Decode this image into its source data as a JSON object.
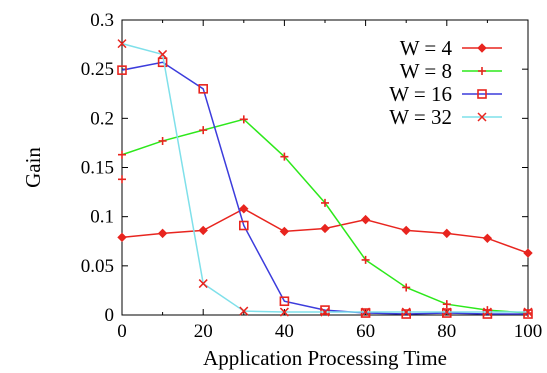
{
  "chart_data": {
    "type": "line",
    "title": "",
    "xlabel": "Application Processing Time",
    "ylabel": "Gain",
    "xlim": [
      0,
      100
    ],
    "ylim": [
      0,
      0.3
    ],
    "xticks": [
      "0",
      "20",
      "40",
      "60",
      "80",
      "100"
    ],
    "yticks": [
      "0",
      "0.05",
      "0.1",
      "0.15",
      "0.2",
      "0.25",
      "0.3"
    ],
    "xtick_values": [
      0,
      20,
      40,
      60,
      80,
      100
    ],
    "ytick_values": [
      0,
      0.05,
      0.1,
      0.15,
      0.2,
      0.25,
      0.3
    ],
    "grid": false,
    "legend_position": "top-right",
    "x": [
      0,
      10,
      20,
      30,
      40,
      50,
      60,
      70,
      80,
      90,
      100
    ],
    "series": [
      {
        "name": "W = 4",
        "color": "#e8251f",
        "marker": "diamond",
        "values": [
          0.079,
          0.083,
          0.086,
          0.108,
          0.085,
          0.088,
          0.097,
          0.086,
          0.083,
          0.078,
          0.063
        ]
      },
      {
        "name": "W = 8",
        "color": "#2de81b",
        "marker": "plus",
        "markerColor": "#e8251f",
        "values": [
          0.163,
          0.177,
          0.188,
          0.199,
          0.161,
          0.114,
          0.056,
          0.028,
          0.011,
          0.005,
          0.002
        ]
      },
      {
        "name": "W = 16",
        "color": "#3c3cdc",
        "marker": "square",
        "markerColor": "#e8251f",
        "values": [
          0.249,
          0.257,
          0.23,
          0.091,
          0.014,
          0.005,
          0.002,
          0.001,
          0.002,
          0.001,
          0.001
        ]
      },
      {
        "name": "W = 32",
        "color": "#7fe0ea",
        "marker": "x",
        "markerColor": "#e8251f",
        "values": [
          0.276,
          0.265,
          0.032,
          0.004,
          0.003,
          0.003,
          0.003,
          0.003,
          0.003,
          0.003,
          0.003
        ]
      }
    ],
    "extra_points": [
      {
        "series": "W = 8",
        "x": 0,
        "y": 0.138
      }
    ]
  }
}
